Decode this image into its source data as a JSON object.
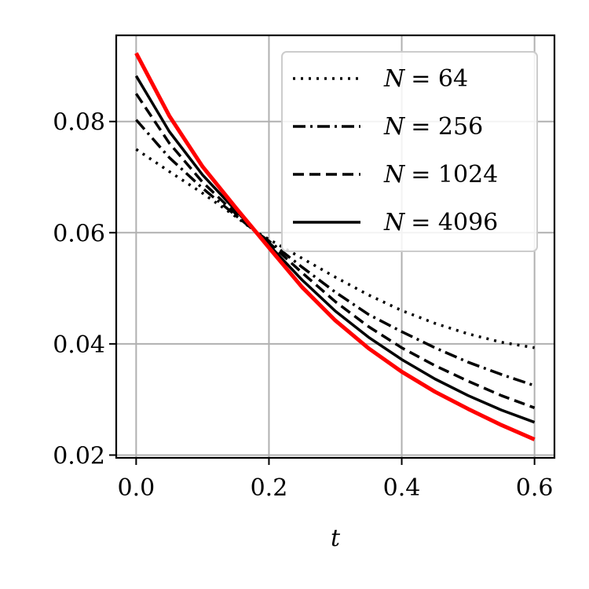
{
  "chart_data": {
    "type": "line",
    "title": "",
    "xlabel": "t",
    "ylabel": "",
    "xlim": [
      -0.03,
      0.63
    ],
    "ylim": [
      0.0195,
      0.0955
    ],
    "xticks": [
      0.0,
      0.2,
      0.4,
      0.6
    ],
    "xtick_labels": [
      "0.0",
      "0.2",
      "0.4",
      "0.6"
    ],
    "yticks": [
      0.02,
      0.04,
      0.06,
      0.08
    ],
    "ytick_labels": [
      "0.02",
      "0.04",
      "0.06",
      "0.08"
    ],
    "grid": true,
    "legend_position": "top-right",
    "x": [
      0.0,
      0.05,
      0.1,
      0.15,
      0.18,
      0.2,
      0.25,
      0.3,
      0.35,
      0.4,
      0.45,
      0.5,
      0.55,
      0.6
    ],
    "series": [
      {
        "name": "N = 64",
        "legend_var": "N",
        "legend_value": "= 64",
        "style": "dotted",
        "color": "#000000",
        "values": [
          0.075,
          0.071,
          0.0671,
          0.0629,
          0.0602,
          0.0588,
          0.0554,
          0.052,
          0.0488,
          0.046,
          0.0437,
          0.0418,
          0.0403,
          0.0393
        ]
      },
      {
        "name": "N = 256",
        "legend_var": "N",
        "legend_value": "= 256",
        "style": "dashdot",
        "color": "#000000",
        "values": [
          0.0803,
          0.0735,
          0.068,
          0.0631,
          0.0602,
          0.0585,
          0.0538,
          0.0493,
          0.0453,
          0.0422,
          0.0393,
          0.0367,
          0.0345,
          0.0325
        ]
      },
      {
        "name": "N = 1024",
        "legend_var": "N",
        "legend_value": "= 1024",
        "style": "dashed",
        "color": "#000000",
        "values": [
          0.085,
          0.0761,
          0.0691,
          0.0634,
          0.0602,
          0.0582,
          0.0528,
          0.0476,
          0.0431,
          0.0393,
          0.0361,
          0.0333,
          0.0307,
          0.0285
        ]
      },
      {
        "name": "N = 4096",
        "legend_var": "N",
        "legend_value": "= 4096",
        "style": "solid",
        "color": "#000000",
        "values": [
          0.0882,
          0.0782,
          0.0704,
          0.064,
          0.0602,
          0.0578,
          0.0515,
          0.0459,
          0.0412,
          0.0372,
          0.0337,
          0.0307,
          0.0281,
          0.0259
        ]
      },
      {
        "name": "",
        "style": "solid",
        "color": "#ff0000",
        "values": [
          0.0923,
          0.081,
          0.0719,
          0.0645,
          0.0602,
          0.0573,
          0.0502,
          0.0442,
          0.0392,
          0.035,
          0.0314,
          0.0283,
          0.0254,
          0.0228
        ]
      }
    ]
  }
}
